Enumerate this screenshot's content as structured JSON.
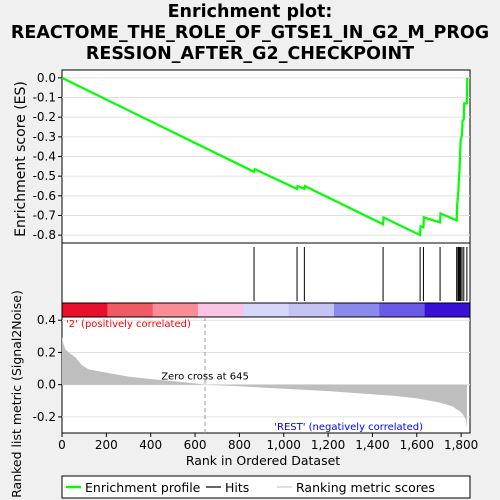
{
  "title": {
    "line1": "Enrichment plot:",
    "line2": "REACTOME_THE_ROLE_OF_GTSE1_IN_G2_M_PROG",
    "line3": "RESSION_AFTER_G2_CHECKPOINT"
  },
  "legend": {
    "enrichment_profile": "Enrichment profile",
    "hits": "Hits",
    "ranking_metric_scores": "Ranking metric scores"
  },
  "colors": {
    "es_line": "#00ff00",
    "hits": "#000000",
    "metric_fill": "#bebebe",
    "pos_label": "#ff0000",
    "neg_label": "#0000ff",
    "gradient": [
      "#e8102d",
      "#f05a64",
      "#f88c97",
      "#f9c4e4",
      "#d7d7f9",
      "#c4c4f4",
      "#8a8aec",
      "#6a5ae8",
      "#3a10d8"
    ]
  },
  "chart_data": [
    {
      "type": "line",
      "name": "enrichment-profile",
      "ylabel": "Enrichment score (ES)",
      "xlim": [
        0,
        1840
      ],
      "ylim": [
        -0.84,
        0.04
      ],
      "yticks": [
        0.0,
        -0.1,
        -0.2,
        -0.3,
        -0.4,
        -0.5,
        -0.6,
        -0.7,
        -0.8
      ],
      "grid": true,
      "points": [
        [
          0,
          0.0
        ],
        [
          866,
          -0.478
        ],
        [
          870,
          -0.465
        ],
        [
          1060,
          -0.565
        ],
        [
          1062,
          -0.55
        ],
        [
          1093,
          -0.565
        ],
        [
          1095,
          -0.55
        ],
        [
          1448,
          -0.745
        ],
        [
          1450,
          -0.71
        ],
        [
          1615,
          -0.8
        ],
        [
          1617,
          -0.755
        ],
        [
          1630,
          -0.76
        ],
        [
          1632,
          -0.71
        ],
        [
          1705,
          -0.735
        ],
        [
          1707,
          -0.69
        ],
        [
          1780,
          -0.725
        ],
        [
          1782,
          -0.65
        ],
        [
          1786,
          -0.6
        ],
        [
          1788,
          -0.56
        ],
        [
          1790,
          -0.52
        ],
        [
          1792,
          -0.48
        ],
        [
          1794,
          -0.43
        ],
        [
          1796,
          -0.37
        ],
        [
          1798,
          -0.315
        ],
        [
          1804,
          -0.29
        ],
        [
          1806,
          -0.22
        ],
        [
          1812,
          -0.21
        ],
        [
          1814,
          -0.13
        ],
        [
          1826,
          -0.13
        ],
        [
          1828,
          0.0
        ]
      ],
      "hits": [
        866,
        1060,
        1093,
        1448,
        1615,
        1630,
        1705,
        1780,
        1786,
        1790,
        1794,
        1798,
        1804,
        1812,
        1826
      ]
    },
    {
      "type": "area",
      "name": "ranking-metric",
      "xlabel": "Rank in Ordered Dataset",
      "ylabel": "Ranked list metric (Signal2Noise)",
      "xlim": [
        0,
        1840
      ],
      "ylim": [
        -0.3,
        0.42
      ],
      "xticks": [
        0,
        200,
        400,
        600,
        800,
        1000,
        1200,
        1400,
        1600,
        1800
      ],
      "xtick_labels": [
        "0",
        "200",
        "400",
        "600",
        "800",
        "1,000",
        "1,200",
        "1,400",
        "1,600",
        "1,800"
      ],
      "yticks": [
        0.4,
        0.2,
        0.0,
        -0.2
      ],
      "grid": true,
      "zero_cross": 645,
      "zero_cross_label": "Zero cross at 645",
      "pos_label": "'2' (positively correlated)",
      "neg_label": "'REST' (negatively correlated)",
      "points": [
        [
          0,
          0.3
        ],
        [
          5,
          0.26
        ],
        [
          15,
          0.22
        ],
        [
          30,
          0.2
        ],
        [
          60,
          0.17
        ],
        [
          90,
          0.12
        ],
        [
          120,
          0.095
        ],
        [
          200,
          0.075
        ],
        [
          300,
          0.05
        ],
        [
          400,
          0.035
        ],
        [
          500,
          0.022
        ],
        [
          600,
          0.008
        ],
        [
          645,
          0.0
        ],
        [
          800,
          -0.01
        ],
        [
          1000,
          -0.025
        ],
        [
          1200,
          -0.04
        ],
        [
          1400,
          -0.06
        ],
        [
          1500,
          -0.07
        ],
        [
          1600,
          -0.085
        ],
        [
          1700,
          -0.11
        ],
        [
          1760,
          -0.135
        ],
        [
          1800,
          -0.17
        ],
        [
          1815,
          -0.2
        ],
        [
          1822,
          -0.22
        ],
        [
          1826,
          -0.27
        ]
      ]
    }
  ]
}
